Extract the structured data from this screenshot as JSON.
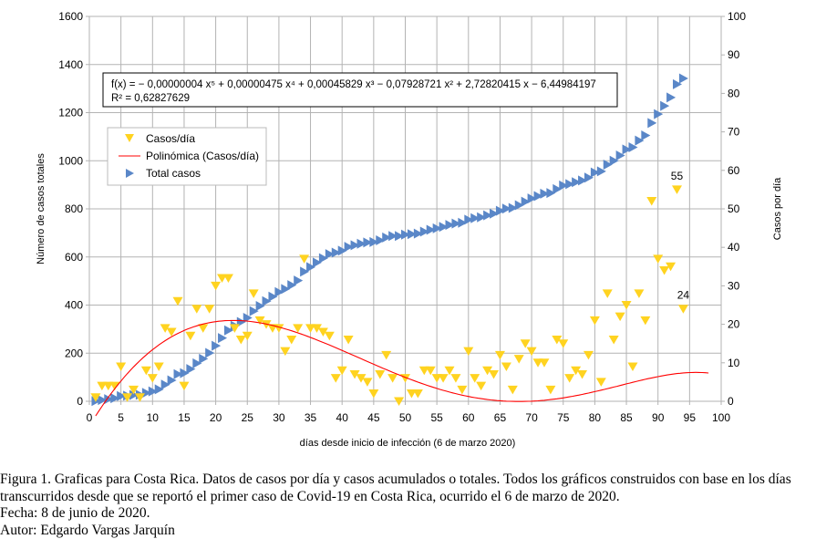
{
  "chart_data": {
    "type": "scatter",
    "xlabel": "días desde inicio de infección (6 de marzo 2020)",
    "ylabel_left": "Número de casos totales",
    "ylabel_right": "Casos por día",
    "xlim": [
      0,
      100
    ],
    "ylim_left": [
      0,
      1600
    ],
    "ylim_right": [
      0,
      100
    ],
    "x_ticks": [
      "0",
      "5",
      "10",
      "15",
      "20",
      "25",
      "30",
      "35",
      "40",
      "45",
      "50",
      "55",
      "60",
      "65",
      "70",
      "75",
      "80",
      "85",
      "90",
      "95",
      "100"
    ],
    "y_left_ticks": [
      "0",
      "200",
      "400",
      "600",
      "800",
      "1000",
      "1200",
      "1400",
      "1600"
    ],
    "y_right_ticks": [
      "0",
      "10",
      "20",
      "30",
      "40",
      "50",
      "60",
      "70",
      "80",
      "90",
      "100"
    ],
    "grid": true,
    "legend_placement": "upper-left",
    "legend": [
      "Casos/día",
      "Polinómica (Casos/día)",
      "Total casos"
    ],
    "colors": {
      "casos": "#FFD320",
      "trend": "#FF0000",
      "total": "#5A87C8"
    },
    "days": [
      1,
      2,
      3,
      4,
      5,
      6,
      7,
      8,
      9,
      10,
      11,
      12,
      13,
      14,
      15,
      16,
      17,
      18,
      19,
      20,
      21,
      22,
      23,
      24,
      25,
      26,
      27,
      28,
      29,
      30,
      31,
      32,
      33,
      34,
      35,
      36,
      37,
      38,
      39,
      40,
      41,
      42,
      43,
      44,
      45,
      46,
      47,
      48,
      49,
      50,
      51,
      52,
      53,
      54,
      55,
      56,
      57,
      58,
      59,
      60,
      61,
      62,
      63,
      64,
      65,
      66,
      67,
      68,
      69,
      70,
      71,
      72,
      73,
      74,
      75,
      76,
      77,
      78,
      79,
      80,
      81,
      82,
      83,
      84,
      85,
      86,
      87,
      88,
      89,
      90,
      91,
      92,
      93,
      94
    ],
    "series": [
      {
        "name": "Casos/día",
        "axis": "right",
        "marker": "triangle-down",
        "values": [
          1,
          4,
          4,
          4,
          9,
          1,
          3,
          1,
          8,
          6,
          9,
          19,
          18,
          26,
          4,
          17,
          24,
          19,
          24,
          30,
          32,
          32,
          19,
          16,
          17,
          28,
          21,
          20,
          19,
          19,
          13,
          16,
          19,
          37,
          19,
          19,
          18,
          17,
          6,
          8,
          16,
          7,
          6,
          5,
          2,
          7,
          12,
          6,
          0,
          6,
          2,
          2,
          8,
          8,
          6,
          6,
          8,
          6,
          3,
          13,
          6,
          4,
          8,
          7,
          12,
          9,
          3,
          11,
          15,
          13,
          10,
          10,
          3,
          16,
          15,
          6,
          8,
          7,
          12,
          21,
          5,
          28,
          16,
          22,
          25,
          9,
          28,
          21,
          52,
          37,
          34,
          35,
          55,
          24
        ]
      },
      {
        "name": "Total casos",
        "axis": "left",
        "marker": "triangle-right",
        "values": [
          1,
          5,
          9,
          13,
          22,
          23,
          26,
          27,
          35,
          41,
          50,
          69,
          87,
          113,
          117,
          134,
          158,
          177,
          201,
          231,
          263,
          295,
          314,
          330,
          347,
          375,
          396,
          416,
          435,
          454,
          467,
          483,
          502,
          539,
          558,
          577,
          595,
          612,
          618,
          626,
          642,
          649,
          655,
          660,
          662,
          669,
          681,
          687,
          687,
          693,
          695,
          697,
          705,
          713,
          719,
          725,
          733,
          739,
          742,
          755,
          761,
          765,
          773,
          780,
          792,
          801,
          804,
          815,
          830,
          843,
          853,
          863,
          866,
          882,
          897,
          903,
          911,
          918,
          930,
          951,
          956,
          984,
          1000,
          1022,
          1047,
          1056,
          1084,
          1105,
          1157,
          1194,
          1228,
          1263,
          1318,
          1342
        ]
      }
    ],
    "trendline": {
      "name": "Polinómica (Casos/día)",
      "coefficients": [
        -4e-08,
        4.75e-06,
        0.00045829,
        -0.07928721,
        2.72820415,
        -6.44984197
      ],
      "x_range": [
        1,
        98
      ],
      "equation_text": "f(x) = − 0,00000004 x⁵ + 0,00000475 x⁴ + 0,00045829 x³ − 0,07928721 x² + 2,72820415 x − 6,44984197",
      "r2_text": "R² = 0,62827629"
    },
    "annotations": [
      {
        "text": "55",
        "day": 93,
        "value": 55
      },
      {
        "text": "24",
        "day": 94,
        "value": 24
      }
    ]
  },
  "caption": {
    "line1": "Figura 1. Graficas para Costa Rica. Datos de casos por día y casos acumulados o totales. Todos los gráficos construidos con base en los días",
    "line2": "transcurridos desde que se reportó el primer caso de Covid-19 en Costa Rica, ocurrido el 6 de marzo de 2020.",
    "line3": "Fecha: 8 de junio de 2020.",
    "line4": "Autor: Edgardo Vargas Jarquín"
  }
}
